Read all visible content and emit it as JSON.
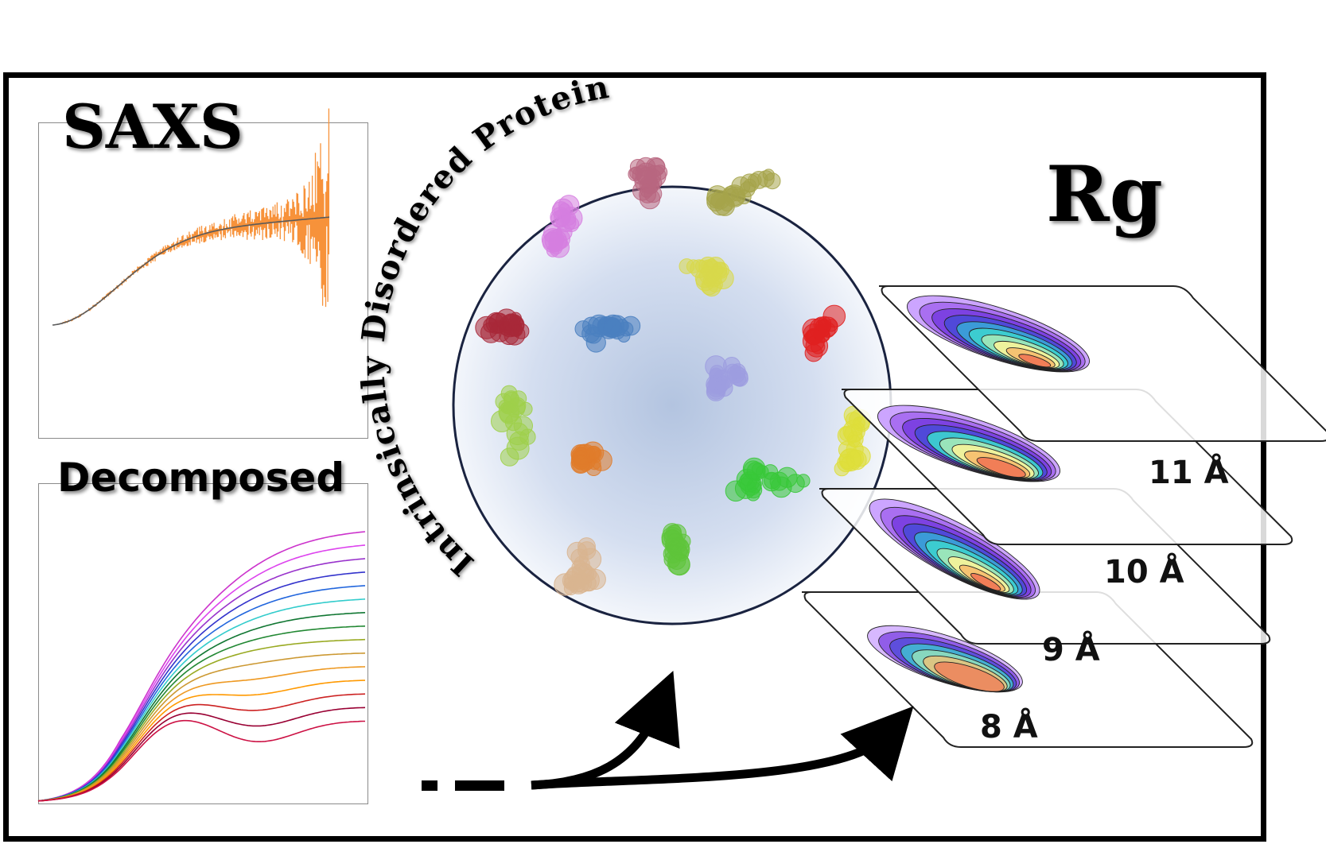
{
  "titles": {
    "saxs": "SAXS",
    "decomposed": "Decomposed",
    "rg": "Rg",
    "ensemble": "Intrinsically Disordered Protein"
  },
  "rg_maps": [
    {
      "label": "11 Å"
    },
    {
      "label": "10 Å"
    },
    {
      "label": "9 Å"
    },
    {
      "label": "8 Å"
    }
  ],
  "colors": {
    "saxs_data": "#f7923a",
    "saxs_fit": "#5a5a5a",
    "decomposed_curves": [
      "#cc33cc",
      "#dd44ee",
      "#9933cc",
      "#3333cc",
      "#2266dd",
      "#33cccc",
      "#117733",
      "#228833",
      "#99aa22",
      "#cc9933",
      "#ee9922",
      "#ff9900",
      "#cc2222",
      "#990033",
      "#cc1144"
    ],
    "circle_fill": "#b9c9e3",
    "circle_border": "#1a2340"
  },
  "molecules": [
    {
      "name": "molecule-violet",
      "color": "#d67ee0"
    },
    {
      "name": "molecule-mauve",
      "color": "#b86680"
    },
    {
      "name": "molecule-olive",
      "color": "#a5a44a"
    },
    {
      "name": "molecule-maroon",
      "color": "#a82838"
    },
    {
      "name": "molecule-blue",
      "color": "#4a7fc0"
    },
    {
      "name": "molecule-yellow",
      "color": "#d8d84a"
    },
    {
      "name": "molecule-red",
      "color": "#e02020"
    },
    {
      "name": "molecule-lime",
      "color": "#9ed04a"
    },
    {
      "name": "molecule-lavender",
      "color": "#9d9de0"
    },
    {
      "name": "molecule-yellow2",
      "color": "#dede3a"
    },
    {
      "name": "molecule-orange",
      "color": "#e07b2a"
    },
    {
      "name": "molecule-green",
      "color": "#38c838"
    },
    {
      "name": "molecule-tan",
      "color": "#d9b590"
    },
    {
      "name": "molecule-green2",
      "color": "#5ec43a"
    }
  ]
}
